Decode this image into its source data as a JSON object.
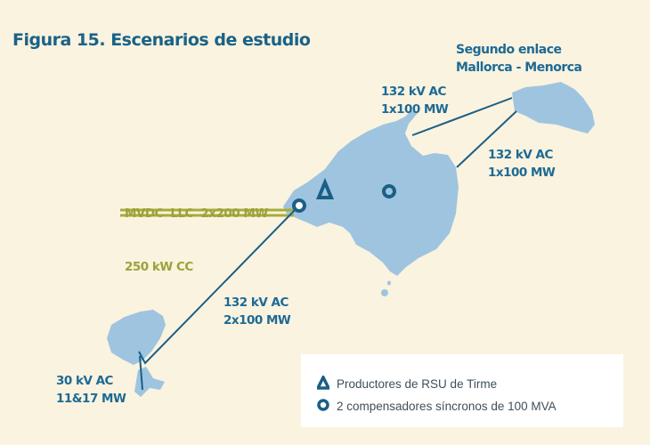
{
  "title": "Figura 15. Escenarios de estudio",
  "labels": {
    "menorca_link": [
      "Segundo enlace",
      "Mallorca - Menorca"
    ],
    "link_north": [
      "132 kV AC",
      "1x100 MW"
    ],
    "link_east": [
      "132 kV AC",
      "1x100 MW"
    ],
    "mvdc": [
      "MVDC  LLC  2x200 MW",
      "250 kW CC"
    ],
    "link_ibiza": [
      "132 kV AC",
      "2x100 MW"
    ],
    "link_formentera": [
      "30 kV AC",
      "11&17 MW"
    ]
  },
  "legend": {
    "items": [
      {
        "icon": "triangle-icon",
        "label": "Productores de RSU de Tirme"
      },
      {
        "icon": "ring-icon",
        "label": "2 compensadores síncronos de 100 MVA"
      }
    ]
  },
  "colors": {
    "background": "#faf3df",
    "island": "#9fc4df",
    "line": "#1a5f86",
    "mvdc": "#a8ac3a"
  }
}
